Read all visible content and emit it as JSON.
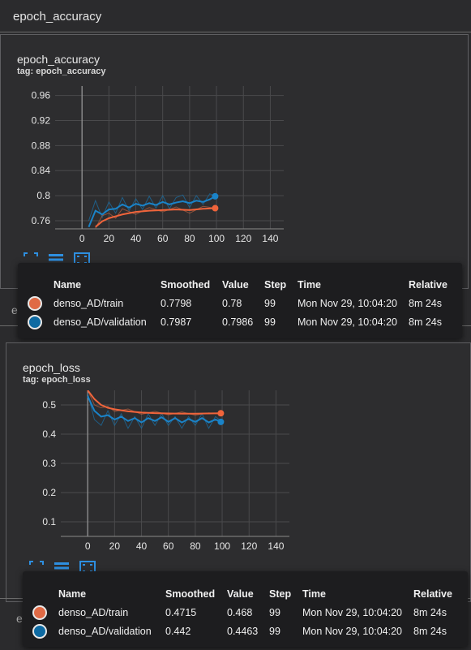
{
  "sections": {
    "accuracy_header": "epoch_accuracy",
    "loss_header_partial": "epoch_loss",
    "eval_header_partial": "evaluation_accuracy_vs_iterations"
  },
  "accuracy_card": {
    "title": "epoch_accuracy",
    "tag": "tag: epoch_accuracy"
  },
  "loss_card": {
    "title": "epoch_loss",
    "tag": "tag: epoch_loss"
  },
  "colors": {
    "train": "#f0643b",
    "validation": "#1a83c8",
    "train_raw": "#a75a3e",
    "validation_raw": "#1c6a9c"
  },
  "icons": [
    "fullscreen-icon",
    "data-series-icon",
    "fit-domain-icon"
  ],
  "tooltip_headers": [
    "Name",
    "Smoothed",
    "Value",
    "Step",
    "Time",
    "Relative"
  ],
  "accuracy_tooltip": [
    {
      "name": "denso_AD/train",
      "smoothed": "0.7798",
      "value": "0.78",
      "step": "99",
      "time": "Mon Nov 29, 10:04:20",
      "relative": "8m 24s",
      "color": "#e06a45"
    },
    {
      "name": "denso_AD/validation",
      "smoothed": "0.7987",
      "value": "0.7986",
      "step": "99",
      "time": "Mon Nov 29, 10:04:20",
      "relative": "8m 24s",
      "color": "#0e6aa2"
    }
  ],
  "loss_tooltip": [
    {
      "name": "denso_AD/train",
      "smoothed": "0.4715",
      "value": "0.468",
      "step": "99",
      "time": "Mon Nov 29, 10:04:20",
      "relative": "8m 24s",
      "color": "#e06a45"
    },
    {
      "name": "denso_AD/validation",
      "smoothed": "0.442",
      "value": "0.4463",
      "step": "99",
      "time": "Mon Nov 29, 10:04:20",
      "relative": "8m 24s",
      "color": "#0e6aa2"
    }
  ],
  "chart_data": [
    {
      "type": "line",
      "title": "epoch_accuracy",
      "x_ticks": [
        "0",
        "20",
        "40",
        "60",
        "80",
        "100",
        "120",
        "140"
      ],
      "y_ticks": [
        "0.76",
        "0.8",
        "0.84",
        "0.88",
        "0.92",
        "0.96"
      ],
      "xlim": [
        -20,
        150
      ],
      "ylim": [
        0.747,
        0.975
      ],
      "series": [
        {
          "name": "denso_AD/train",
          "x": [
            10,
            15,
            20,
            25,
            30,
            40,
            50,
            60,
            70,
            80,
            90,
            99
          ],
          "smoothed": [
            0.75,
            0.759,
            0.764,
            0.767,
            0.77,
            0.774,
            0.776,
            0.777,
            0.778,
            0.777,
            0.779,
            0.78
          ],
          "raw": [
            0.748,
            0.768,
            0.772,
            0.764,
            0.779,
            0.77,
            0.781,
            0.774,
            0.782,
            0.772,
            0.783,
            0.78
          ]
        },
        {
          "name": "denso_AD/validation",
          "x": [
            5,
            10,
            15,
            20,
            25,
            30,
            35,
            40,
            45,
            50,
            55,
            60,
            65,
            70,
            75,
            80,
            85,
            90,
            95,
            99
          ],
          "smoothed": [
            0.75,
            0.776,
            0.77,
            0.778,
            0.779,
            0.786,
            0.781,
            0.787,
            0.784,
            0.788,
            0.785,
            0.79,
            0.786,
            0.789,
            0.791,
            0.788,
            0.792,
            0.79,
            0.794,
            0.799
          ],
          "raw": [
            0.76,
            0.792,
            0.765,
            0.79,
            0.772,
            0.797,
            0.776,
            0.795,
            0.778,
            0.799,
            0.78,
            0.8,
            0.779,
            0.797,
            0.801,
            0.781,
            0.8,
            0.786,
            0.803,
            0.799
          ]
        }
      ]
    },
    {
      "type": "line",
      "title": "epoch_loss",
      "x_ticks": [
        "0",
        "20",
        "40",
        "60",
        "80",
        "100",
        "120",
        "140"
      ],
      "y_ticks": [
        "0.1",
        "0.2",
        "0.3",
        "0.4",
        "0.5"
      ],
      "xlim": [
        -20,
        150
      ],
      "ylim": [
        0.05,
        0.55
      ],
      "series": [
        {
          "name": "denso_AD/train",
          "x": [
            0,
            5,
            10,
            15,
            20,
            30,
            40,
            50,
            60,
            70,
            80,
            90,
            99
          ],
          "smoothed": [
            0.55,
            0.52,
            0.5,
            0.49,
            0.485,
            0.478,
            0.474,
            0.472,
            0.471,
            0.47,
            0.47,
            0.471,
            0.4715
          ],
          "raw": [
            0.55,
            0.5,
            0.49,
            0.495,
            0.478,
            0.486,
            0.468,
            0.478,
            0.466,
            0.476,
            0.465,
            0.473,
            0.468
          ]
        },
        {
          "name": "denso_AD/validation",
          "x": [
            0,
            5,
            10,
            15,
            20,
            25,
            30,
            35,
            40,
            45,
            50,
            55,
            60,
            65,
            70,
            75,
            80,
            85,
            90,
            95,
            99
          ],
          "smoothed": [
            0.53,
            0.48,
            0.46,
            0.465,
            0.45,
            0.46,
            0.445,
            0.455,
            0.44,
            0.455,
            0.445,
            0.458,
            0.442,
            0.455,
            0.44,
            0.452,
            0.442,
            0.455,
            0.44,
            0.45,
            0.442
          ],
          "raw": [
            0.54,
            0.45,
            0.43,
            0.48,
            0.43,
            0.47,
            0.42,
            0.46,
            0.42,
            0.47,
            0.43,
            0.47,
            0.43,
            0.46,
            0.42,
            0.46,
            0.43,
            0.47,
            0.42,
            0.46,
            0.446
          ]
        }
      ]
    }
  ]
}
